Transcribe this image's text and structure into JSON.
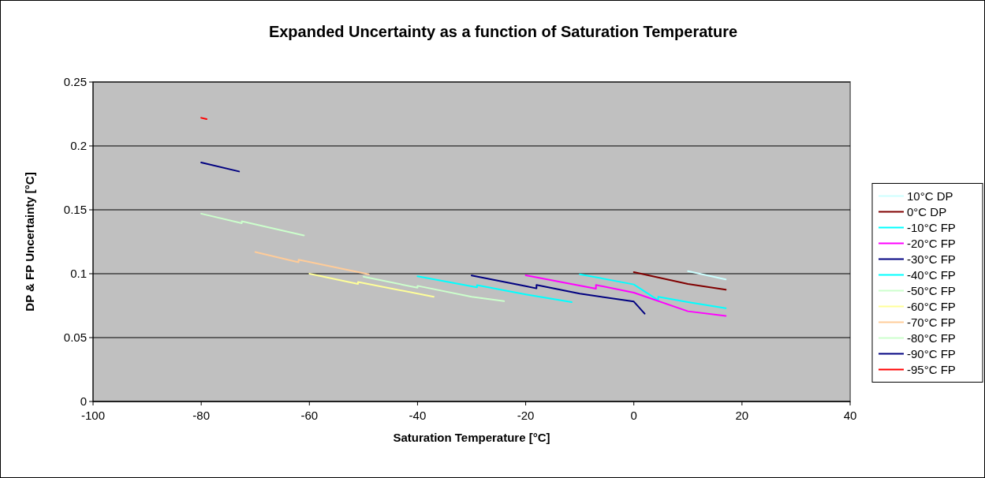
{
  "chart_data": {
    "type": "line",
    "title": "Expanded Uncertainty as a function of Saturation Temperature",
    "xlabel": "Saturation Temperature [°C]",
    "ylabel": "DP & FP Uncertainty [°C]",
    "xlim": [
      -100,
      40
    ],
    "xticks": [
      -100,
      -80,
      -60,
      -40,
      -20,
      0,
      20,
      40
    ],
    "ylim": [
      0,
      0.25
    ],
    "yticks": [
      0,
      0.05,
      0.1,
      0.15,
      0.2,
      0.25
    ],
    "grid": "y",
    "legend": "right",
    "marker": "none",
    "series": [
      {
        "name": "10°C DP",
        "color": "#ccffff",
        "x": [
          10,
          17
        ],
        "values": [
          0.102,
          0.0955
        ]
      },
      {
        "name": "0°C DP",
        "color": "#800000",
        "x": [
          0,
          10,
          17
        ],
        "values": [
          0.1012,
          0.092,
          0.0875
        ]
      },
      {
        "name": "-10°C FP",
        "color": "#00ffff",
        "x": [
          -10,
          0,
          4.5,
          4.5,
          10,
          17
        ],
        "values": [
          0.0996,
          0.0916,
          0.0792,
          0.0819,
          0.0778,
          0.073
        ]
      },
      {
        "name": "-20°C FP",
        "color": "#ff00ff",
        "x": [
          -20,
          -7,
          -7,
          0,
          10,
          17
        ],
        "values": [
          0.0988,
          0.0883,
          0.0912,
          0.0852,
          0.0706,
          0.067
        ]
      },
      {
        "name": "-30°C FP",
        "color": "#000080",
        "x": [
          -30,
          -20,
          -18,
          -18,
          -10,
          0,
          2
        ],
        "values": [
          0.0986,
          0.0903,
          0.0885,
          0.0912,
          0.0844,
          0.0782,
          0.0687
        ]
      },
      {
        "name": "-40°C FP",
        "color": "#00ffff",
        "x": [
          -40,
          -29,
          -29,
          -20,
          -11.5
        ],
        "values": [
          0.098,
          0.0893,
          0.091,
          0.0838,
          0.0778
        ]
      },
      {
        "name": "-50°C FP",
        "color": "#ccffcc",
        "x": [
          -50,
          -40,
          -40,
          -30,
          -24
        ],
        "values": [
          0.0977,
          0.089,
          0.0905,
          0.082,
          0.0785
        ]
      },
      {
        "name": "-60°C FP",
        "color": "#ffff99",
        "x": [
          -60,
          -51,
          -51,
          -37
        ],
        "values": [
          0.1,
          0.092,
          0.0935,
          0.082
        ]
      },
      {
        "name": "-70°C FP",
        "color": "#ffcc99",
        "x": [
          -70,
          -62,
          -62,
          -49
        ],
        "values": [
          0.117,
          0.109,
          0.111,
          0.0995
        ]
      },
      {
        "name": "-80°C FP",
        "color": "#ccffcc",
        "x": [
          -80,
          -72.5,
          -72.5,
          -61
        ],
        "values": [
          0.147,
          0.1395,
          0.141,
          0.13
        ]
      },
      {
        "name": "-90°C FP",
        "color": "#000080",
        "x": [
          -80,
          -73
        ],
        "values": [
          0.187,
          0.18
        ]
      },
      {
        "name": "-95°C FP",
        "color": "#ff0000",
        "x": [
          -80,
          -79
        ],
        "values": [
          0.222,
          0.221
        ]
      }
    ]
  }
}
